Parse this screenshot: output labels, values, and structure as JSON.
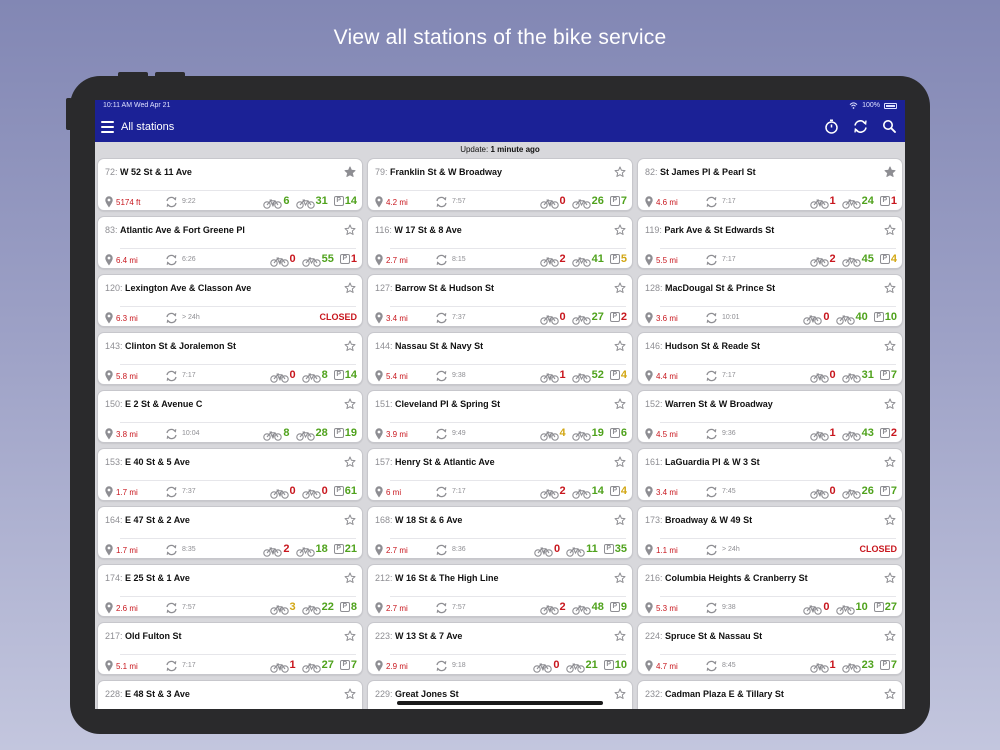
{
  "headline": "View all stations of the bike service",
  "status_bar": {
    "time": "10:11 AM   Wed Apr 21",
    "battery": "100%"
  },
  "nav": {
    "title": "All stations"
  },
  "update": {
    "label": "Update:",
    "value": "1 minute ago"
  },
  "colors": {
    "nav": "#1b2196",
    "red": "#c8171e",
    "green": "#4fa21c",
    "yellow": "#d2a612"
  },
  "icons": [
    "menu-icon",
    "timer-icon",
    "refresh-icon",
    "search-icon",
    "star-icon",
    "map-pin-icon",
    "bike-icon",
    "ebike-icon",
    "parking-icon"
  ],
  "stations": [
    {
      "num": "72:",
      "name": "W 52 St & 11 Ave",
      "dist": "5174 ft",
      "upd": "9:22",
      "e": "6",
      "ec": "g",
      "b": "31",
      "bc": "g",
      "p": "14",
      "pc": "g",
      "fav": true
    },
    {
      "num": "79:",
      "name": "Franklin St & W Broadway",
      "dist": "4.2 mi",
      "upd": "7:57",
      "e": "0",
      "ec": "r",
      "b": "26",
      "bc": "g",
      "p": "7",
      "pc": "g",
      "fav": false
    },
    {
      "num": "82:",
      "name": "St James Pl & Pearl St",
      "dist": "4.6 mi",
      "upd": "7:17",
      "e": "1",
      "ec": "r",
      "b": "24",
      "bc": "g",
      "p": "1",
      "pc": "r",
      "fav": true
    },
    {
      "num": "83:",
      "name": "Atlantic Ave & Fort Greene Pl",
      "dist": "6.4 mi",
      "upd": "6:26",
      "e": "0",
      "ec": "r",
      "b": "55",
      "bc": "g",
      "p": "1",
      "pc": "r",
      "fav": false
    },
    {
      "num": "116:",
      "name": "W 17 St & 8 Ave",
      "dist": "2.7 mi",
      "upd": "8:15",
      "e": "2",
      "ec": "r",
      "b": "41",
      "bc": "g",
      "p": "5",
      "pc": "y",
      "fav": false
    },
    {
      "num": "119:",
      "name": "Park Ave & St Edwards St",
      "dist": "5.5 mi",
      "upd": "7:17",
      "e": "2",
      "ec": "r",
      "b": "45",
      "bc": "g",
      "p": "4",
      "pc": "y",
      "fav": false
    },
    {
      "num": "120:",
      "name": "Lexington Ave & Classon Ave",
      "dist": "6.3 mi",
      "upd": "> 24h",
      "closed": "CLOSED",
      "fav": false
    },
    {
      "num": "127:",
      "name": "Barrow St & Hudson St",
      "dist": "3.4 mi",
      "upd": "7:37",
      "e": "0",
      "ec": "r",
      "b": "27",
      "bc": "g",
      "p": "2",
      "pc": "r",
      "fav": false
    },
    {
      "num": "128:",
      "name": "MacDougal St & Prince St",
      "dist": "3.6 mi",
      "upd": "10:01",
      "e": "0",
      "ec": "r",
      "b": "40",
      "bc": "g",
      "p": "10",
      "pc": "g",
      "fav": false
    },
    {
      "num": "143:",
      "name": "Clinton St & Joralemon St",
      "dist": "5.8 mi",
      "upd": "7:17",
      "e": "0",
      "ec": "r",
      "b": "8",
      "bc": "g",
      "p": "14",
      "pc": "g",
      "fav": false
    },
    {
      "num": "144:",
      "name": "Nassau St & Navy St",
      "dist": "5.4 mi",
      "upd": "9:38",
      "e": "1",
      "ec": "r",
      "b": "52",
      "bc": "g",
      "p": "4",
      "pc": "y",
      "fav": false
    },
    {
      "num": "146:",
      "name": "Hudson St & Reade St",
      "dist": "4.4 mi",
      "upd": "7:17",
      "e": "0",
      "ec": "r",
      "b": "31",
      "bc": "g",
      "p": "7",
      "pc": "g",
      "fav": false
    },
    {
      "num": "150:",
      "name": "E 2 St & Avenue C",
      "dist": "3.8 mi",
      "upd": "10:04",
      "e": "8",
      "ec": "g",
      "b": "28",
      "bc": "g",
      "p": "19",
      "pc": "g",
      "fav": false
    },
    {
      "num": "151:",
      "name": "Cleveland Pl & Spring St",
      "dist": "3.9 mi",
      "upd": "9:49",
      "e": "4",
      "ec": "y",
      "b": "19",
      "bc": "g",
      "p": "6",
      "pc": "g",
      "fav": false
    },
    {
      "num": "152:",
      "name": "Warren St & W Broadway",
      "dist": "4.5 mi",
      "upd": "9:36",
      "e": "1",
      "ec": "r",
      "b": "43",
      "bc": "g",
      "p": "2",
      "pc": "r",
      "fav": false
    },
    {
      "num": "153:",
      "name": "E 40 St & 5 Ave",
      "dist": "1.7 mi",
      "upd": "7:37",
      "e": "0",
      "ec": "r",
      "b": "0",
      "bc": "r",
      "p": "61",
      "pc": "g",
      "fav": false
    },
    {
      "num": "157:",
      "name": "Henry St & Atlantic Ave",
      "dist": "6 mi",
      "upd": "7:17",
      "e": "2",
      "ec": "r",
      "b": "14",
      "bc": "g",
      "p": "4",
      "pc": "y",
      "fav": false
    },
    {
      "num": "161:",
      "name": "LaGuardia Pl & W 3 St",
      "dist": "3.4 mi",
      "upd": "7:45",
      "e": "0",
      "ec": "r",
      "b": "26",
      "bc": "g",
      "p": "7",
      "pc": "g",
      "fav": false
    },
    {
      "num": "164:",
      "name": "E 47 St & 2 Ave",
      "dist": "1.7 mi",
      "upd": "8:35",
      "e": "2",
      "ec": "r",
      "b": "18",
      "bc": "g",
      "p": "21",
      "pc": "g",
      "fav": false
    },
    {
      "num": "168:",
      "name": "W 18 St & 6 Ave",
      "dist": "2.7 mi",
      "upd": "8:36",
      "e": "0",
      "ec": "r",
      "b": "11",
      "bc": "g",
      "p": "35",
      "pc": "g",
      "fav": false
    },
    {
      "num": "173:",
      "name": "Broadway & W 49 St",
      "dist": "1.1 mi",
      "upd": "> 24h",
      "closed": "CLOSED",
      "fav": false
    },
    {
      "num": "174:",
      "name": "E 25 St & 1 Ave",
      "dist": "2.6 mi",
      "upd": "7:57",
      "e": "3",
      "ec": "y",
      "b": "22",
      "bc": "g",
      "p": "8",
      "pc": "g",
      "fav": false
    },
    {
      "num": "212:",
      "name": "W 16 St & The High Line",
      "dist": "2.7 mi",
      "upd": "7:57",
      "e": "2",
      "ec": "r",
      "b": "48",
      "bc": "g",
      "p": "9",
      "pc": "g",
      "fav": false
    },
    {
      "num": "216:",
      "name": "Columbia Heights & Cranberry St",
      "dist": "5.3 mi",
      "upd": "9:38",
      "e": "0",
      "ec": "r",
      "b": "10",
      "bc": "g",
      "p": "27",
      "pc": "g",
      "fav": false
    },
    {
      "num": "217:",
      "name": "Old Fulton St",
      "dist": "5.1 mi",
      "upd": "7:17",
      "e": "1",
      "ec": "r",
      "b": "27",
      "bc": "g",
      "p": "7",
      "pc": "g",
      "fav": false
    },
    {
      "num": "223:",
      "name": "W 13 St & 7 Ave",
      "dist": "2.9 mi",
      "upd": "9:18",
      "e": "0",
      "ec": "r",
      "b": "21",
      "bc": "g",
      "p": "10",
      "pc": "g",
      "fav": false
    },
    {
      "num": "224:",
      "name": "Spruce St & Nassau St",
      "dist": "4.7 mi",
      "upd": "8:45",
      "e": "1",
      "ec": "r",
      "b": "23",
      "bc": "g",
      "p": "7",
      "pc": "g",
      "fav": false
    },
    {
      "num": "228:",
      "name": "E 48 St & 3 Ave",
      "fav": false
    },
    {
      "num": "229:",
      "name": "Great Jones St",
      "fav": false
    },
    {
      "num": "232:",
      "name": "Cadman Plaza E & Tillary St",
      "fav": false
    }
  ]
}
